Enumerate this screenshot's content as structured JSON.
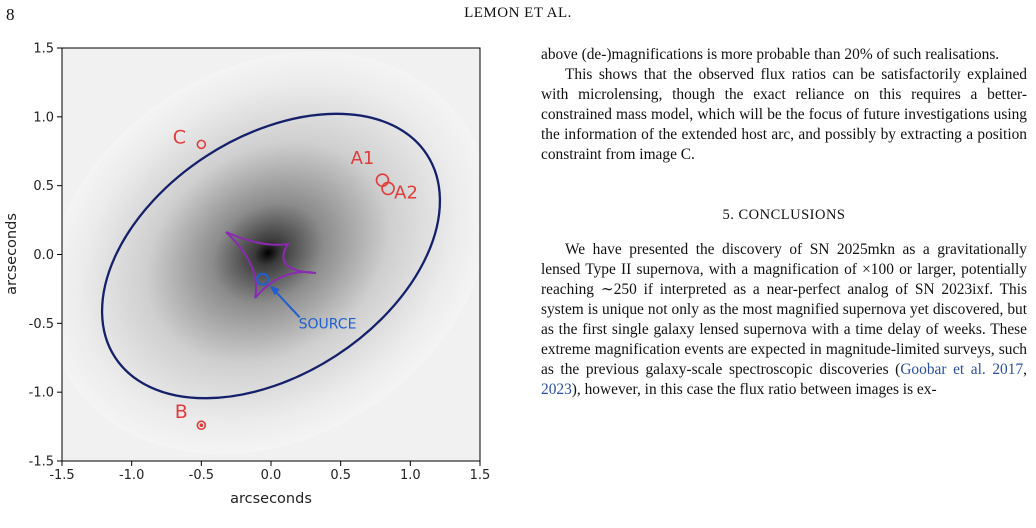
{
  "header": {
    "page_number": "8",
    "running_head": "LEMON ET AL."
  },
  "figure": {
    "xlabel": "arcseconds",
    "ylabel": "arcseconds",
    "x_ticks": [
      "-1.5",
      "-1.0",
      "-0.5",
      "0.0",
      "0.5",
      "1.0",
      "1.5"
    ],
    "y_ticks": [
      "-1.5",
      "-1.0",
      "-0.5",
      "0.0",
      "0.5",
      "1.0",
      "1.5"
    ],
    "images": [
      {
        "label": "A1",
        "x": 0.8,
        "y": 0.54
      },
      {
        "label": "A2",
        "x": 0.84,
        "y": 0.48
      },
      {
        "label": "B",
        "x": -0.5,
        "y": -1.24
      },
      {
        "label": "C",
        "x": -0.5,
        "y": 0.8
      }
    ],
    "source": {
      "label": "SOURCE",
      "x": -0.06,
      "y": -0.18
    },
    "colors": {
      "images": "#e03c3c",
      "source": "#1f5fd0",
      "critical_curve": "#14206a",
      "caustic": "#8a2bb0"
    }
  },
  "text": {
    "para1": "above (de-)magnifications is more probable than 20% of such realisations.",
    "para2": "This shows that the observed flux ratios can be satisfactorily explained with microlensing, though the exact reliance on this requires a better-constrained mass model, which will be the focus of future investigations using the information of the extended host arc, and possibly by extracting a position constraint from image C.",
    "section_heading": "5. CONCLUSIONS",
    "para3_start": "We have presented the discovery of SN 2025mkn as a gravitationally lensed Type II supernova, with a magnification of ×100 or larger, potentially reaching ∼250 if interpreted as a near-perfect analog of SN 2023ixf. This system is unique not only as the most magnified supernova yet discovered, but as the first single galaxy lensed supernova with a time delay of weeks. These extreme magnification events are expected in magnitude-limited surveys, such as the previous galaxy-scale spectroscopic discoveries (",
    "cite1": "Goobar et al. 2017",
    "sep": ", ",
    "cite2": "2023",
    "para3_end": "), however, in this case the flux ratio between images is ex-"
  }
}
